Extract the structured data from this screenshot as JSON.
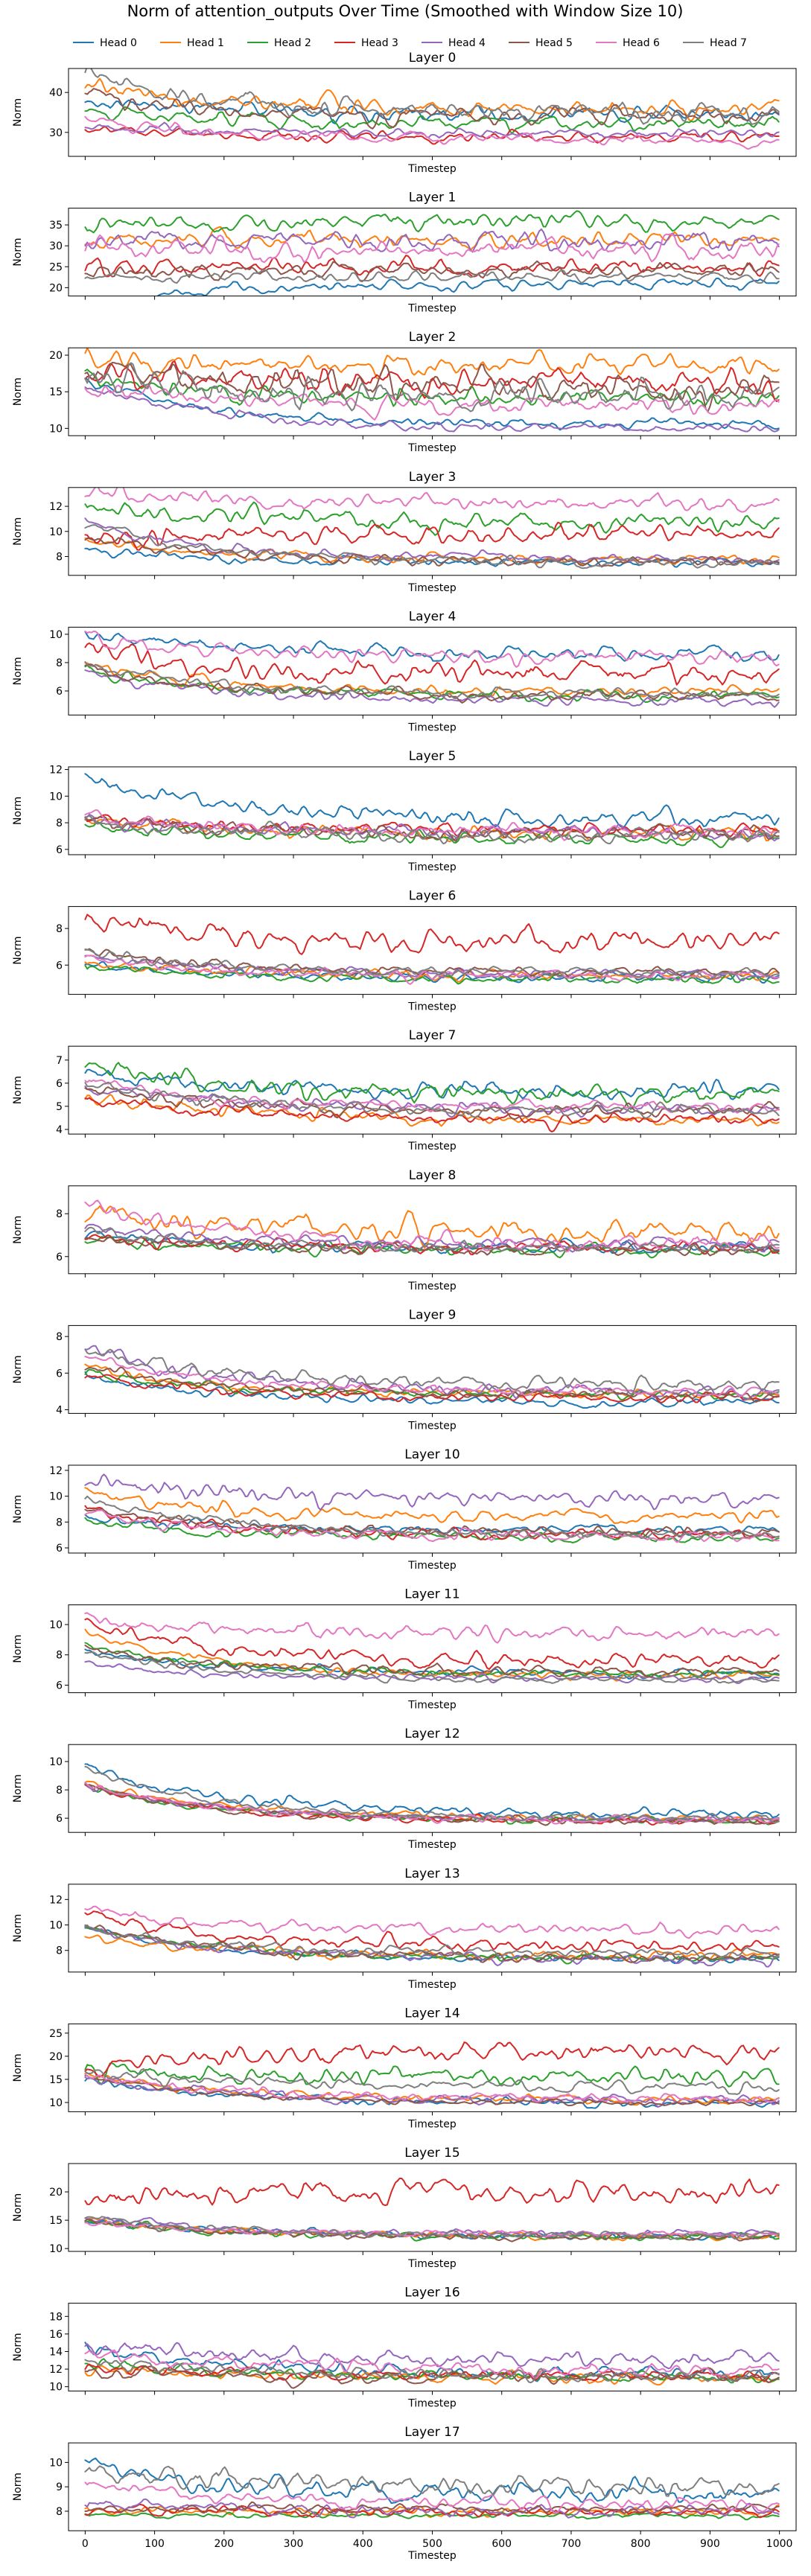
{
  "chart_data": {
    "type": "line",
    "title": "Norm of attention_outputs Over Time (Smoothed with Window Size 10)",
    "xlabel": "Timestep",
    "ylabel": "Norm",
    "x_range": [
      0,
      1000
    ],
    "x_ticks": [
      0,
      100,
      200,
      300,
      400,
      500,
      600,
      700,
      800,
      900,
      1000
    ],
    "legend_position": "top",
    "series": [
      {
        "name": "Head 0",
        "color": "#1f77b4"
      },
      {
        "name": "Head 1",
        "color": "#ff7f0e"
      },
      {
        "name": "Head 2",
        "color": "#2ca02c"
      },
      {
        "name": "Head 3",
        "color": "#d62728"
      },
      {
        "name": "Head 4",
        "color": "#9467bd"
      },
      {
        "name": "Head 5",
        "color": "#8c564b"
      },
      {
        "name": "Head 6",
        "color": "#e377c2"
      },
      {
        "name": "Head 7",
        "color": "#7f7f7f"
      }
    ],
    "panels": [
      {
        "title": "Layer 0",
        "ylim": [
          24,
          46
        ],
        "yticks": [
          30,
          40
        ],
        "keypoints": [
          [
            0,
            40
          ],
          [
            100,
            36
          ],
          [
            300,
            35
          ],
          [
            600,
            34
          ],
          [
            1000,
            34
          ]
        ],
        "levels": [
          [
            34.5,
            1.5
          ],
          [
            36,
            1.5
          ],
          [
            32,
            1.5
          ],
          [
            29,
            1
          ],
          [
            29.5,
            1
          ],
          [
            34,
            1.5
          ],
          [
            28,
            1
          ],
          [
            35,
            2
          ]
        ],
        "start_offsets": [
          4,
          6,
          4,
          2,
          2,
          6,
          6,
          10
        ]
      },
      {
        "title": "Layer 1",
        "ylim": [
          18,
          39
        ],
        "yticks": [
          20,
          25,
          30,
          35
        ],
        "keypoints": [
          [
            0,
            30
          ],
          [
            200,
            29
          ],
          [
            600,
            29
          ],
          [
            1000,
            28
          ]
        ],
        "levels": [
          [
            21,
            1
          ],
          [
            31.5,
            1.5
          ],
          [
            35.5,
            1.5
          ],
          [
            25,
            1.5
          ],
          [
            31,
            2
          ],
          [
            24,
            1.5
          ],
          [
            29.5,
            2
          ],
          [
            22.5,
            1
          ]
        ],
        "start_offsets": [
          -5,
          0,
          0,
          0,
          0,
          0,
          0,
          0
        ]
      },
      {
        "title": "Layer 2",
        "ylim": [
          9,
          21
        ],
        "yticks": [
          10,
          15,
          20
        ],
        "keypoints": [
          [
            0,
            15
          ],
          [
            500,
            14.5
          ],
          [
            1000,
            14.5
          ]
        ],
        "levels": [
          [
            10.5,
            0.5
          ],
          [
            18.5,
            1
          ],
          [
            14,
            1
          ],
          [
            16,
            1.5
          ],
          [
            10,
            0.5
          ],
          [
            15.5,
            1.5
          ],
          [
            13,
            1
          ],
          [
            14.5,
            1.5
          ]
        ],
        "start_offsets": [
          6,
          1,
          3,
          2,
          6,
          3,
          3,
          3
        ]
      },
      {
        "title": "Layer 3",
        "ylim": [
          6.5,
          13.5
        ],
        "yticks": [
          8,
          10,
          12
        ],
        "keypoints": [
          [
            0,
            10
          ],
          [
            500,
            9.5
          ],
          [
            1000,
            9.5
          ]
        ],
        "levels": [
          [
            7.5,
            0.3
          ],
          [
            7.8,
            0.3
          ],
          [
            10.8,
            0.6
          ],
          [
            9.8,
            0.6
          ],
          [
            7.8,
            0.3
          ],
          [
            7.6,
            0.3
          ],
          [
            12.2,
            0.5
          ],
          [
            7.5,
            0.3
          ]
        ],
        "start_offsets": [
          1,
          1.5,
          1,
          -0.5,
          3,
          2,
          1,
          3
        ]
      },
      {
        "title": "Layer 4",
        "ylim": [
          4.3,
          10.5
        ],
        "yticks": [
          6,
          8,
          10
        ],
        "keypoints": [
          [
            0,
            7
          ],
          [
            500,
            6.7
          ],
          [
            1000,
            6.7
          ]
        ],
        "levels": [
          [
            8.6,
            0.4
          ],
          [
            5.9,
            0.3
          ],
          [
            5.6,
            0.3
          ],
          [
            7.3,
            0.6
          ],
          [
            5.3,
            0.3
          ],
          [
            5.6,
            0.3
          ],
          [
            8.4,
            0.4
          ],
          [
            5.8,
            0.3
          ]
        ],
        "start_offsets": [
          1.5,
          2,
          2,
          1.5,
          2,
          2,
          1.5,
          2
        ]
      },
      {
        "title": "Layer 5",
        "ylim": [
          5.6,
          12.2
        ],
        "yticks": [
          6,
          8,
          10,
          12
        ],
        "keypoints": [
          [
            0,
            9
          ],
          [
            500,
            8
          ],
          [
            1000,
            8
          ]
        ],
        "levels": [
          [
            8.2,
            0.5
          ],
          [
            7.2,
            0.4
          ],
          [
            6.8,
            0.4
          ],
          [
            7.5,
            0.4
          ],
          [
            7.3,
            0.4
          ],
          [
            7.2,
            0.4
          ],
          [
            7.4,
            0.4
          ],
          [
            7.0,
            0.4
          ]
        ],
        "start_offsets": [
          3.5,
          1,
          1,
          0.8,
          1,
          1,
          1,
          1
        ]
      },
      {
        "title": "Layer 6",
        "ylim": [
          4.4,
          9.2
        ],
        "yticks": [
          6,
          8
        ],
        "keypoints": [
          [
            0,
            6
          ],
          [
            500,
            5.5
          ],
          [
            1000,
            5.6
          ]
        ],
        "levels": [
          [
            5.3,
            0.2
          ],
          [
            5.4,
            0.2
          ],
          [
            5.2,
            0.2
          ],
          [
            7.3,
            0.5
          ],
          [
            5.5,
            0.2
          ],
          [
            5.6,
            0.2
          ],
          [
            5.4,
            0.2
          ],
          [
            5.6,
            0.2
          ]
        ],
        "start_offsets": [
          0.8,
          0.8,
          0.8,
          1.2,
          1,
          1.2,
          1,
          1.2
        ]
      },
      {
        "title": "Layer 7",
        "ylim": [
          3.8,
          7.6
        ],
        "yticks": [
          4,
          5,
          6,
          7
        ],
        "keypoints": [
          [
            0,
            6
          ],
          [
            380,
            6
          ],
          [
            420,
            5
          ],
          [
            1000,
            5.2
          ]
        ],
        "levels": [
          [
            5.6,
            0.3
          ],
          [
            4.4,
            0.2
          ],
          [
            5.5,
            0.3
          ],
          [
            4.4,
            0.2
          ],
          [
            4.9,
            0.2
          ],
          [
            4.8,
            0.2
          ],
          [
            5.0,
            0.2
          ],
          [
            4.8,
            0.2
          ]
        ],
        "start_offsets": [
          1,
          1,
          1.3,
          1,
          1,
          1,
          1.1,
          1.2
        ]
      },
      {
        "title": "Layer 8",
        "ylim": [
          5.2,
          9.3
        ],
        "yticks": [
          6,
          8
        ],
        "keypoints": [
          [
            0,
            7.3
          ],
          [
            400,
            7
          ],
          [
            430,
            6
          ],
          [
            1000,
            6.5
          ]
        ],
        "levels": [
          [
            6.4,
            0.2
          ],
          [
            7.2,
            0.4
          ],
          [
            6.3,
            0.2
          ],
          [
            6.4,
            0.2
          ],
          [
            6.6,
            0.2
          ],
          [
            6.3,
            0.2
          ],
          [
            6.6,
            0.3
          ],
          [
            6.4,
            0.2
          ]
        ],
        "start_offsets": [
          0.6,
          0.7,
          0.5,
          0.5,
          0.8,
          0.6,
          2,
          0.8
        ]
      },
      {
        "title": "Layer 9",
        "ylim": [
          3.8,
          8.6
        ],
        "yticks": [
          4,
          6,
          8
        ],
        "keypoints": [
          [
            0,
            6
          ],
          [
            400,
            5
          ],
          [
            1000,
            5
          ]
        ],
        "levels": [
          [
            4.4,
            0.2
          ],
          [
            4.8,
            0.2
          ],
          [
            4.8,
            0.2
          ],
          [
            4.6,
            0.2
          ],
          [
            5.0,
            0.3
          ],
          [
            4.8,
            0.2
          ],
          [
            5.0,
            0.2
          ],
          [
            5.4,
            0.3
          ]
        ],
        "start_offsets": [
          1.5,
          1.5,
          1.3,
          1.3,
          2.5,
          1.5,
          2,
          2
        ]
      },
      {
        "title": "Layer 10",
        "ylim": [
          5.6,
          12.4
        ],
        "yticks": [
          6,
          8,
          10,
          12
        ],
        "keypoints": [
          [
            0,
            9
          ],
          [
            450,
            7.5
          ],
          [
            1000,
            7.5
          ]
        ],
        "levels": [
          [
            7.4,
            0.3
          ],
          [
            8.4,
            0.4
          ],
          [
            6.8,
            0.3
          ],
          [
            7.0,
            0.3
          ],
          [
            9.8,
            0.5
          ],
          [
            7.2,
            0.3
          ],
          [
            6.8,
            0.3
          ],
          [
            7.0,
            0.3
          ]
        ],
        "start_offsets": [
          1,
          2,
          1.3,
          2,
          1.5,
          2,
          2,
          3
        ]
      },
      {
        "title": "Layer 11",
        "ylim": [
          5.5,
          11.3
        ],
        "yticks": [
          6,
          8,
          10
        ],
        "keypoints": [
          [
            0,
            8.5
          ],
          [
            400,
            8
          ],
          [
            1000,
            7
          ]
        ],
        "levels": [
          [
            6.8,
            0.2
          ],
          [
            6.6,
            0.2
          ],
          [
            6.7,
            0.2
          ],
          [
            7.6,
            0.4
          ],
          [
            6.4,
            0.2
          ],
          [
            6.9,
            0.3
          ],
          [
            9.4,
            0.4
          ],
          [
            6.3,
            0.2
          ]
        ],
        "start_offsets": [
          1.5,
          3,
          2,
          2.5,
          1,
          1.5,
          1,
          2
        ]
      },
      {
        "title": "Layer 12",
        "ylim": [
          5.0,
          11.2
        ],
        "yticks": [
          6,
          8,
          10
        ],
        "keypoints": [
          [
            0,
            8
          ],
          [
            500,
            6
          ],
          [
            1000,
            6
          ]
        ],
        "levels": [
          [
            6.3,
            0.3
          ],
          [
            6.0,
            0.2
          ],
          [
            5.8,
            0.2
          ],
          [
            5.8,
            0.2
          ],
          [
            5.9,
            0.2
          ],
          [
            5.8,
            0.2
          ],
          [
            5.9,
            0.2
          ],
          [
            6.0,
            0.2
          ]
        ],
        "start_offsets": [
          3.5,
          2.5,
          2.5,
          2.5,
          2.5,
          2.5,
          2.5,
          3.5
        ]
      },
      {
        "title": "Layer 13",
        "ylim": [
          6.3,
          13.2
        ],
        "yticks": [
          8,
          10,
          12
        ],
        "keypoints": [
          [
            0,
            10
          ],
          [
            400,
            9.5
          ],
          [
            1000,
            8.5
          ]
        ],
        "levels": [
          [
            7.3,
            0.2
          ],
          [
            7.6,
            0.3
          ],
          [
            7.4,
            0.2
          ],
          [
            8.4,
            0.4
          ],
          [
            7.3,
            0.3
          ],
          [
            7.4,
            0.3
          ],
          [
            9.6,
            0.4
          ],
          [
            7.8,
            0.3
          ]
        ],
        "start_offsets": [
          2.5,
          1.5,
          2.5,
          2.5,
          2.5,
          2.5,
          1.5,
          2
        ]
      },
      {
        "title": "Layer 14",
        "ylim": [
          8,
          27
        ],
        "yticks": [
          10,
          15,
          20,
          25
        ],
        "keypoints": [
          [
            0,
            15
          ],
          [
            500,
            14
          ],
          [
            1000,
            14
          ]
        ],
        "levels": [
          [
            10,
            0.7
          ],
          [
            10.5,
            0.7
          ],
          [
            15.5,
            1.5
          ],
          [
            21,
            1.5
          ],
          [
            10.5,
            0.8
          ],
          [
            9.8,
            0.5
          ],
          [
            11,
            0.8
          ],
          [
            13.5,
            1
          ]
        ],
        "start_offsets": [
          5,
          6,
          2,
          -4,
          5,
          6,
          5,
          3
        ]
      },
      {
        "title": "Layer 15",
        "ylim": [
          9.5,
          25
        ],
        "yticks": [
          10,
          15,
          20
        ],
        "keypoints": [
          [
            0,
            14
          ],
          [
            500,
            13
          ],
          [
            1000,
            12.5
          ]
        ],
        "levels": [
          [
            12.2,
            0.5
          ],
          [
            12.2,
            0.5
          ],
          [
            12,
            0.5
          ],
          [
            20,
            1.5
          ],
          [
            12.5,
            0.5
          ],
          [
            12,
            0.5
          ],
          [
            12.6,
            0.5
          ],
          [
            12.4,
            0.5
          ]
        ],
        "start_offsets": [
          3,
          3,
          3,
          -1,
          3,
          3,
          2,
          3
        ]
      },
      {
        "title": "Layer 16",
        "ylim": [
          9.5,
          19.5
        ],
        "yticks": [
          10,
          12,
          14,
          16,
          18
        ],
        "keypoints": [
          [
            0,
            13
          ],
          [
            400,
            14
          ],
          [
            500,
            12
          ],
          [
            1000,
            11.5
          ]
        ],
        "levels": [
          [
            11.5,
            0.6
          ],
          [
            11.0,
            0.5
          ],
          [
            11.0,
            0.5
          ],
          [
            11.3,
            0.5
          ],
          [
            13.0,
            0.7
          ],
          [
            11.0,
            0.5
          ],
          [
            12.0,
            0.6
          ],
          [
            11.2,
            0.5
          ]
        ],
        "start_offsets": [
          3,
          1,
          2,
          1,
          2,
          1,
          2,
          2
        ]
      },
      {
        "title": "Layer 17",
        "ylim": [
          7.2,
          10.8
        ],
        "yticks": [
          8,
          9,
          10
        ],
        "keypoints": [
          [
            0,
            8.5
          ],
          [
            500,
            8.3
          ],
          [
            1000,
            8.4
          ]
        ],
        "levels": [
          [
            8.7,
            0.3
          ],
          [
            8.0,
            0.15
          ],
          [
            7.8,
            0.1
          ],
          [
            8.0,
            0.15
          ],
          [
            8.0,
            0.2
          ],
          [
            8.1,
            0.15
          ],
          [
            8.3,
            0.2
          ],
          [
            9.0,
            0.35
          ]
        ],
        "start_offsets": [
          1.2,
          0,
          0,
          0,
          0.4,
          0,
          1,
          0.8
        ]
      }
    ]
  }
}
